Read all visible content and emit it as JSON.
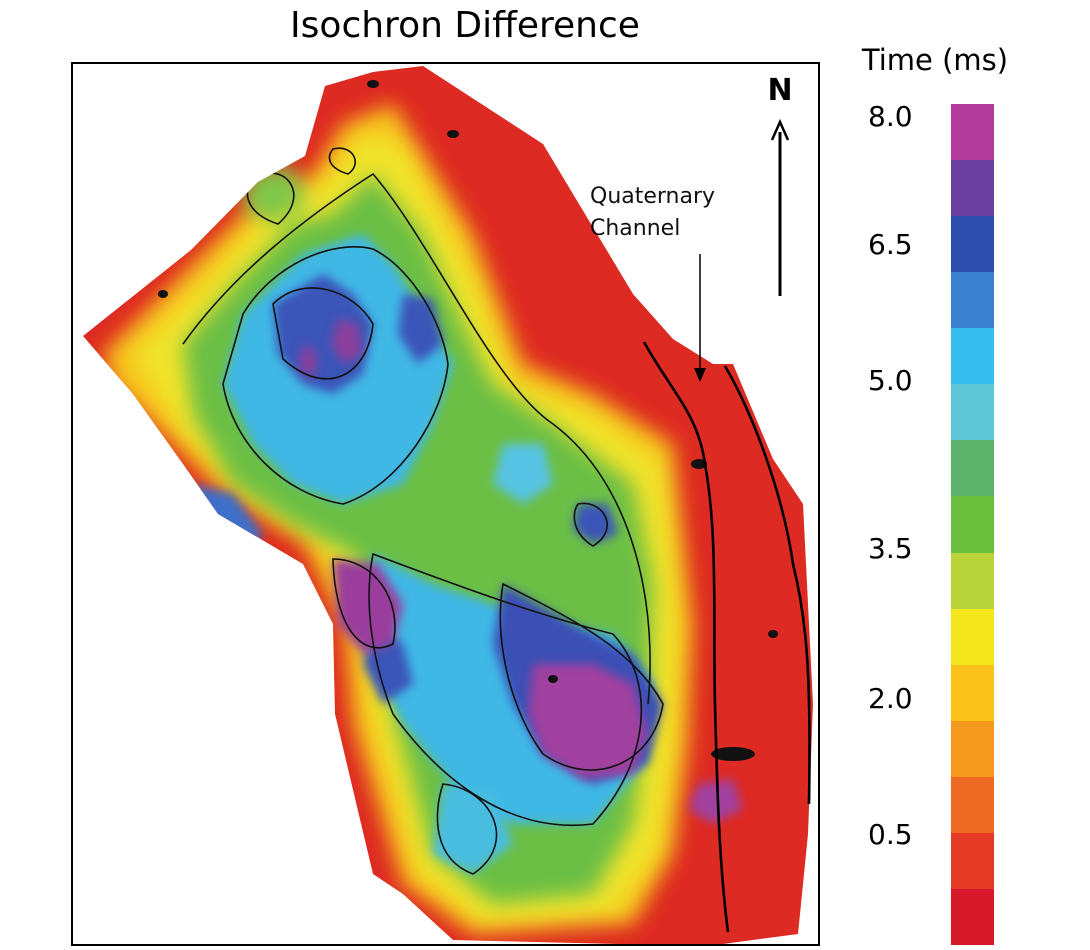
{
  "title": "Isochron Difference",
  "north_label": "N",
  "annotation": {
    "line1": "Quaternary",
    "line2": "Channel"
  },
  "legend": {
    "title": "Time (ms)",
    "ticks": [
      "8.0",
      "6.5",
      "5.0",
      "3.5",
      "2.0",
      "0.5"
    ],
    "colors": [
      "#b23a9a",
      "#6b3fa0",
      "#2f4fb0",
      "#3b7fcf",
      "#38bdf0",
      "#5ec8d8",
      "#5db26a",
      "#6cbf3c",
      "#b9d43a",
      "#f3e61c",
      "#fbc21a",
      "#f59a1e",
      "#ee6a24",
      "#e43a26",
      "#d7182a"
    ]
  }
}
